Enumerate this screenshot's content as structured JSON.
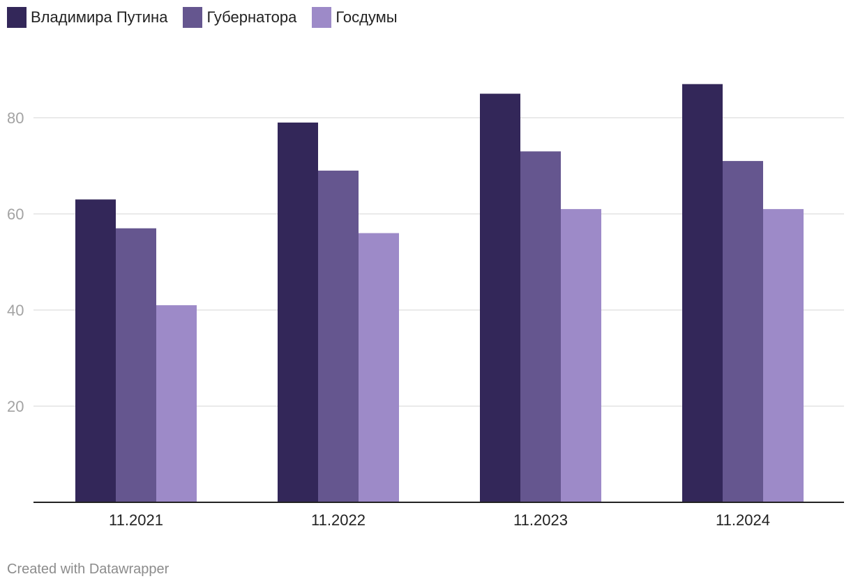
{
  "legend": [
    {
      "label": "Владимира Путина",
      "color": "#332759"
    },
    {
      "label": "Губернатора",
      "color": "#65568f"
    },
    {
      "label": "Госдумы",
      "color": "#9d8ac8"
    }
  ],
  "credit": "Created with Datawrapper",
  "chart_data": {
    "type": "bar",
    "categories": [
      "11.2021",
      "11.2022",
      "11.2023",
      "11.2024"
    ],
    "series": [
      {
        "name": "Владимира Путина",
        "color": "#332759",
        "values": [
          63,
          79,
          85,
          87
        ]
      },
      {
        "name": "Губернатора",
        "color": "#65568f",
        "values": [
          57,
          69,
          73,
          71
        ]
      },
      {
        "name": "Госдумы",
        "color": "#9d8ac8",
        "values": [
          41,
          56,
          61,
          61
        ]
      }
    ],
    "yticks": [
      20,
      40,
      60,
      80
    ],
    "ylim": [
      0,
      90
    ],
    "grid": true,
    "legend_position": "top-left"
  }
}
